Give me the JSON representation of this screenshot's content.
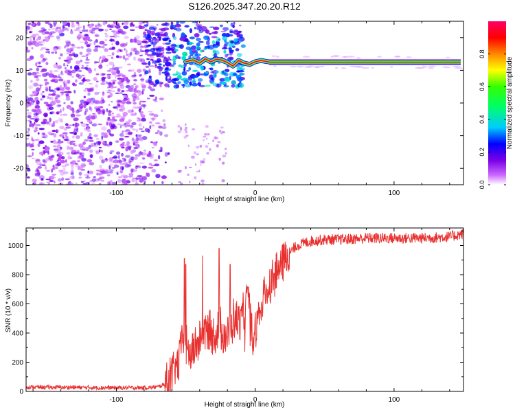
{
  "title": "S126.2025.347.20.20.R12",
  "chart_data": [
    {
      "type": "heatmap",
      "xlabel": "Height of straight line (km)",
      "ylabel": "Frequency (Hz)",
      "xlim": [
        -165,
        150
      ],
      "ylim": [
        -25,
        25
      ],
      "xticks": [
        -100,
        0,
        100
      ],
      "yticks": [
        -20,
        -10,
        0,
        10,
        20
      ],
      "colorbar": {
        "label": "Normalized spectral amplitude",
        "range": [
          0,
          1
        ],
        "ticks": [
          0.0,
          0.2,
          0.4,
          0.6,
          0.8
        ],
        "tick_labels": [
          "0.0",
          "0.2",
          "0.4",
          "0.6",
          "0.8"
        ],
        "colormap": [
          "#ffffff",
          "#cc66ff",
          "#7a00e6",
          "#0000ff",
          "#00ccff",
          "#00ff66",
          "#33ff00",
          "#ffff00",
          "#ff8800",
          "#ff0000",
          "#ff0066"
        ]
      },
      "features": [
        {
          "name": "carrier tone",
          "x_range": [
            10,
            148
          ],
          "frequency": 12.5,
          "amplitude": 0.95
        },
        {
          "name": "occulted noise",
          "x_range": [
            -165,
            -70
          ],
          "frequency_range": [
            -25,
            25
          ],
          "amplitude": 0.35
        },
        {
          "name": "transition",
          "x_range": [
            -70,
            10
          ],
          "frequency_range": [
            5,
            25
          ],
          "amplitude": 0.5
        }
      ]
    },
    {
      "type": "line",
      "xlabel": "Height of straight line (km)",
      "ylabel": "SNR (10 * v/v)",
      "xlim": [
        -165,
        150
      ],
      "ylim": [
        0,
        1120
      ],
      "xticks": [
        -100,
        0,
        100
      ],
      "yticks": [
        0,
        200,
        400,
        600,
        800,
        1000
      ],
      "color": "#e8302f",
      "series": [
        {
          "name": "SNR",
          "x": [
            -165,
            -150,
            -130,
            -110,
            -90,
            -80,
            -70,
            -65,
            -60,
            -55,
            -52,
            -50,
            -48,
            -45,
            -40,
            -35,
            -30,
            -25,
            -20,
            -15,
            -10,
            -5,
            -2,
            0,
            5,
            10,
            15,
            20,
            25,
            30,
            40,
            50,
            60,
            80,
            100,
            120,
            140,
            150
          ],
          "values": [
            30,
            28,
            28,
            25,
            25,
            25,
            30,
            50,
            110,
            200,
            420,
            330,
            250,
            280,
            350,
            420,
            380,
            430,
            380,
            500,
            480,
            620,
            380,
            420,
            620,
            720,
            820,
            880,
            950,
            1000,
            1030,
            1040,
            1040,
            1050,
            1050,
            1050,
            1060,
            1080
          ]
        }
      ],
      "spikes": [
        {
          "x": -51,
          "value": 910
        },
        {
          "x": -50,
          "value": 870
        },
        {
          "x": -38,
          "value": 930
        },
        {
          "x": -26,
          "value": 980
        },
        {
          "x": -18,
          "value": 870
        }
      ]
    }
  ]
}
